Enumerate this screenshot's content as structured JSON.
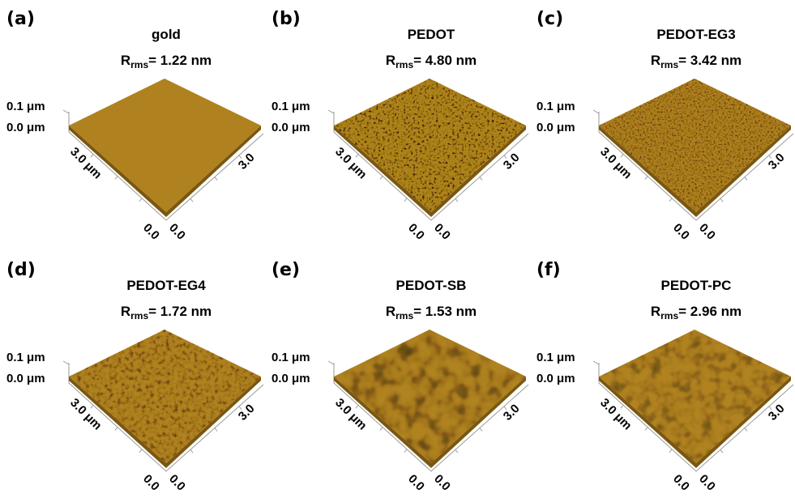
{
  "shared": {
    "rrms_symbol": "R",
    "rrms_subscript": "rms",
    "z_top": "0.1 μm",
    "z_bottom": "0.0 μm",
    "y_far": "3.0 μm",
    "y_origin": "0.0",
    "x_origin": "0.0",
    "x_far": "3.0"
  },
  "panels": [
    {
      "label": "(a)",
      "title": "gold",
      "rrms": "= 1.22 nm"
    },
    {
      "label": "(b)",
      "title": "PEDOT",
      "rrms": "= 4.80 nm"
    },
    {
      "label": "(c)",
      "title": "PEDOT-EG3",
      "rrms": "= 3.42 nm"
    },
    {
      "label": "(d)",
      "title": "PEDOT-EG4",
      "rrms": "= 1.72 nm"
    },
    {
      "label": "(e)",
      "title": "PEDOT-SB",
      "rrms": "= 1.53 nm"
    },
    {
      "label": "(f)",
      "title": "PEDOT-PC",
      "rrms": "= 2.96 nm"
    }
  ]
}
